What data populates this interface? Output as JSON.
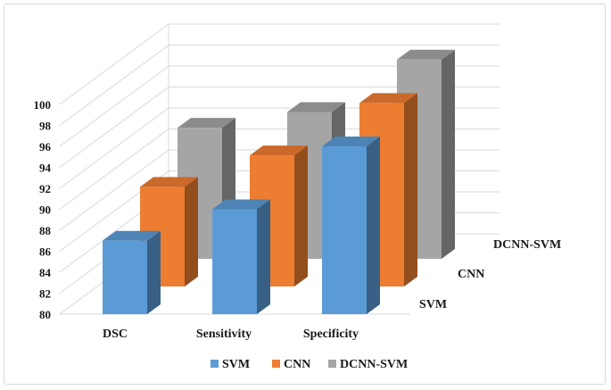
{
  "chart_data": {
    "type": "bar",
    "style": "3d-clustered-column",
    "categories": [
      "DSC",
      "Sensitivity",
      "Specificity"
    ],
    "series": [
      {
        "name": "SVM",
        "values": [
          87,
          90,
          96
        ],
        "color": "#5b9bd5"
      },
      {
        "name": "CNN",
        "values": [
          89.5,
          92.5,
          97.5
        ],
        "color": "#ed7d31"
      },
      {
        "name": "DCNN-SVM",
        "values": [
          92.5,
          94,
          99
        ],
        "color": "#a5a5a5"
      }
    ],
    "ylim": [
      80,
      100
    ],
    "y_ticks": [
      "80",
      "82",
      "84",
      "86",
      "88",
      "90",
      "92",
      "94",
      "96",
      "98",
      "100"
    ],
    "depth_labels": [
      "SVM",
      "CNN",
      "DCNN-SVM"
    ],
    "title": "",
    "xlabel": "",
    "ylabel": "",
    "grid": true,
    "legend_position": "bottom"
  }
}
